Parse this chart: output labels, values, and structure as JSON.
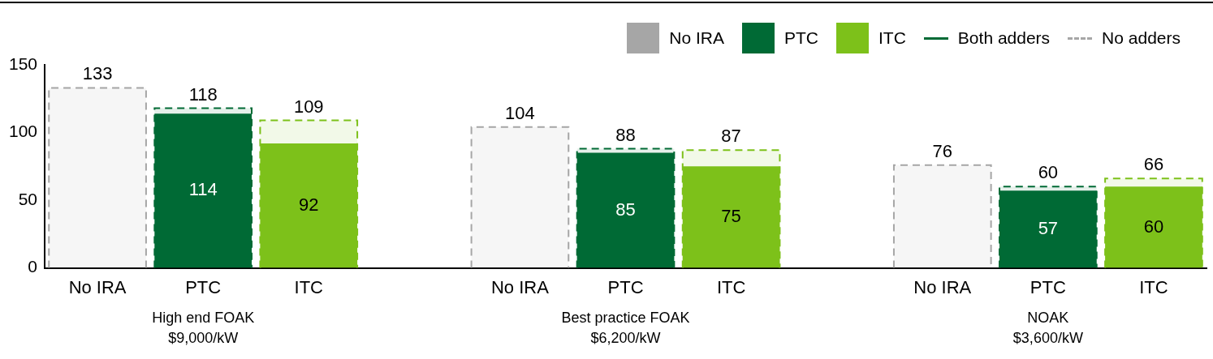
{
  "chart_data": {
    "type": "bar",
    "categories": [
      "No IRA",
      "PTC",
      "ITC",
      null,
      "No IRA",
      "PTC",
      "ITC",
      null,
      "No IRA",
      "PTC",
      "ITC"
    ],
    "series": [
      {
        "name": "Both adders",
        "line_style": "solid",
        "colors": [
          "#a6a6a6",
          "#006a35",
          "#7dc11a",
          null,
          "#a6a6a6",
          "#006a35",
          "#7dc11a",
          null,
          "#a6a6a6",
          "#006a35",
          "#7dc11a"
        ],
        "values": [
          null,
          114,
          92,
          null,
          null,
          85,
          75,
          null,
          null,
          57,
          60
        ]
      },
      {
        "name": "No adders",
        "line_style": "dashed",
        "colors": [
          "#a6a6a6",
          "#006a35",
          "#7dc11a",
          null,
          "#a6a6a6",
          "#006a35",
          "#7dc11a",
          null,
          "#a6a6a6",
          "#006a35",
          "#7dc11a"
        ],
        "values": [
          133,
          118,
          109,
          null,
          104,
          88,
          87,
          null,
          76,
          60,
          66
        ]
      }
    ],
    "ylim": [
      0,
      150
    ],
    "yticks": [
      0,
      50,
      100,
      150
    ],
    "grid": false,
    "legend": "top right",
    "data_labels": true,
    "annotations": [
      "High end FOAK\n$9,000/kW",
      "Best practice FOAK\n$6,200/kW",
      "NOAK\n$3,600/kW"
    ]
  }
}
